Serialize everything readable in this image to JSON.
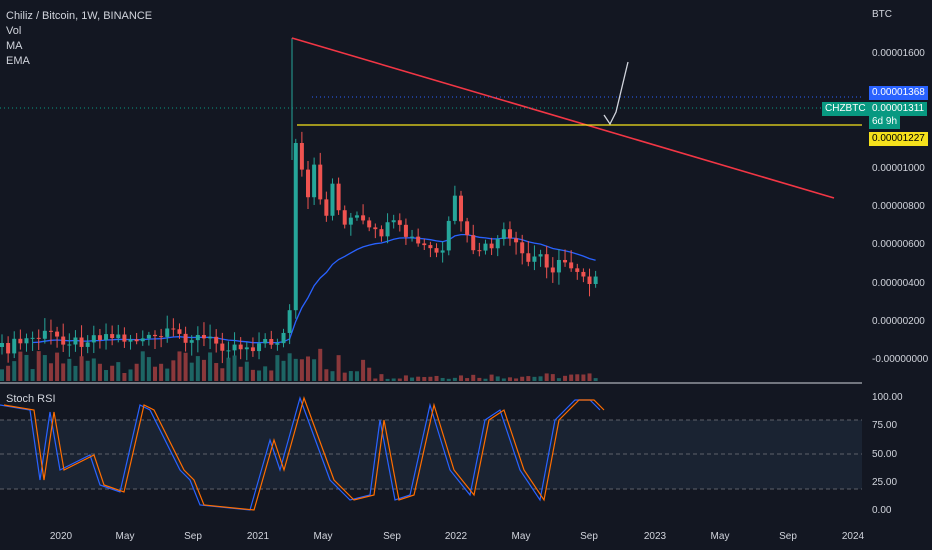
{
  "legend": {
    "title": "Chiliz / Bitcoin, 1W, BINANCE",
    "indicators": [
      "Vol",
      "MA",
      "EMA"
    ]
  },
  "price_axis": {
    "unit": "BTC",
    "ticks": [
      "0.00001600",
      "0.00001000",
      "0.00000800",
      "0.00000600",
      "0.00000400",
      "0.00000200",
      "-0.00000000"
    ]
  },
  "badges": {
    "high": "0.00001368",
    "symbol": "CHZBTC",
    "current": "0.00001311",
    "countdown": "6d 9h",
    "level": "0.00001227"
  },
  "rsi": {
    "title": "Stoch RSI",
    "ticks": [
      "100.00",
      "75.00",
      "50.00",
      "25.00",
      "0.00"
    ]
  },
  "time_axis": [
    "2020",
    "May",
    "Sep",
    "2021",
    "May",
    "Sep",
    "2022",
    "May",
    "Sep",
    "2023",
    "May",
    "Sep",
    "2024"
  ],
  "colors": {
    "background": "#131722",
    "up": "#26a69a",
    "down": "#ef5350",
    "trendline": "#f23645",
    "horizontal_level": "#f5e11c",
    "ema": "#2962ff",
    "rsi_k": "#2962ff",
    "rsi_d": "#ff6d00",
    "high_badge": "#2962ff",
    "symbol_badge": "#089981",
    "level_badge": "#f5e11c"
  }
}
